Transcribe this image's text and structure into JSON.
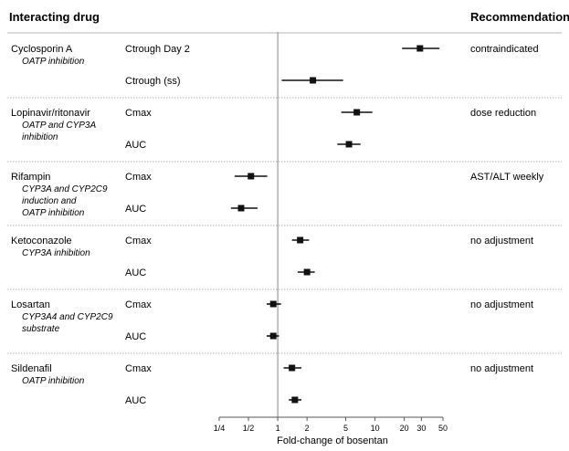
{
  "chart_data": {
    "type": "forest",
    "xscale": "log2",
    "xlim": [
      0.25,
      50
    ],
    "reference_line": 1,
    "xlabel": "Fold-change of bosentan",
    "ticks": [
      {
        "value": 0.25,
        "label": "1/4"
      },
      {
        "value": 0.5,
        "label": "1/2"
      },
      {
        "value": 1,
        "label": "1"
      },
      {
        "value": 2,
        "label": "2"
      },
      {
        "value": 5,
        "label": "5"
      },
      {
        "value": 10,
        "label": "10"
      },
      {
        "value": 20,
        "label": "20"
      },
      {
        "value": 30,
        "label": "30"
      },
      {
        "value": 50,
        "label": "50"
      }
    ],
    "headers": {
      "drug": "Interacting drug",
      "recommendation": "Recommendation"
    },
    "groups": [
      {
        "drug": "Cyclosporin A",
        "mechanism": [
          "OATP inhibition"
        ],
        "recommendation": "contraindicated",
        "rows": [
          {
            "param": "Ctrough Day 2",
            "estimate": 29,
            "lower": 19,
            "upper": 46
          },
          {
            "param": "Ctrough (ss)",
            "estimate": 2.3,
            "lower": 1.1,
            "upper": 4.7
          }
        ]
      },
      {
        "drug": "Lopinavir/ritonavir",
        "mechanism": [
          "OATP and CYP3A",
          "inhibition"
        ],
        "recommendation": "dose reduction",
        "rows": [
          {
            "param": "Cmax",
            "estimate": 6.5,
            "lower": 4.5,
            "upper": 9.4
          },
          {
            "param": "AUC",
            "estimate": 5.4,
            "lower": 4.1,
            "upper": 7.1
          }
        ]
      },
      {
        "drug": "Rifampin",
        "mechanism": [
          "CYP3A and CYP2C9",
          "induction and",
          "OATP inhibition"
        ],
        "recommendation": "AST/ALT weekly",
        "rows": [
          {
            "param": "Cmax",
            "estimate": 0.53,
            "lower": 0.36,
            "upper": 0.78
          },
          {
            "param": "AUC",
            "estimate": 0.42,
            "lower": 0.33,
            "upper": 0.62
          }
        ]
      },
      {
        "drug": "Ketoconazole",
        "mechanism": [
          "CYP3A inhibition"
        ],
        "recommendation": "no adjustment",
        "rows": [
          {
            "param": "Cmax",
            "estimate": 1.7,
            "lower": 1.4,
            "upper": 2.1
          },
          {
            "param": "AUC",
            "estimate": 2.0,
            "lower": 1.6,
            "upper": 2.4
          }
        ]
      },
      {
        "drug": "Losartan",
        "mechanism": [
          "CYP3A4 and CYP2C9",
          "substrate"
        ],
        "recommendation": "no adjustment",
        "rows": [
          {
            "param": "Cmax",
            "estimate": 0.9,
            "lower": 0.77,
            "upper": 1.08
          },
          {
            "param": "AUC",
            "estimate": 0.9,
            "lower": 0.77,
            "upper": 1.03
          }
        ]
      },
      {
        "drug": "Sildenafil",
        "mechanism": [
          "OATP inhibition"
        ],
        "recommendation": "no adjustment",
        "rows": [
          {
            "param": "Cmax",
            "estimate": 1.4,
            "lower": 1.15,
            "upper": 1.75
          },
          {
            "param": "AUC",
            "estimate": 1.5,
            "lower": 1.3,
            "upper": 1.75
          }
        ]
      }
    ],
    "colors": {
      "marker": "#111111",
      "separator": "#b5b5b5",
      "axis": "#555555",
      "reference": "#888888"
    }
  }
}
